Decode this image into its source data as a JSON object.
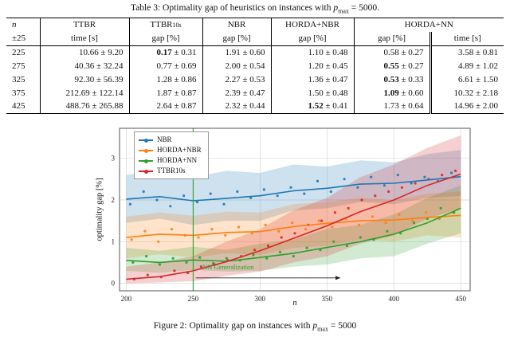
{
  "table": {
    "caption": {
      "prefix": "Table 3: Optimality gap of heuristics on instances with ",
      "var": "p",
      "sub": "max",
      "suffix": " = 5000."
    },
    "header": {
      "n_top": "n",
      "n_sub": "±25",
      "ttbr": "TTBR",
      "ttbr_sub": "time [s]",
      "ttbr10s_main": "TTBR",
      "ttbr10s_small": "10s",
      "ttbr10s_sub": "gap [%]",
      "nbr": "NBR",
      "nbr_sub": "gap [%]",
      "horda_nbr": "HORDA+NBR",
      "horda_nbr_sub": "gap [%]",
      "horda_nn": "HORDA+NN",
      "horda_nn_gap_sub": "gap [%]",
      "horda_nn_time_sub": "time [s]"
    },
    "rows": [
      {
        "n": "225",
        "cells": [
          {
            "v": "10.66",
            "e": "9.20",
            "b": false
          },
          {
            "v": "0.17",
            "e": "0.31",
            "b": true
          },
          {
            "v": "1.91",
            "e": "0.60",
            "b": false
          },
          {
            "v": "1.10",
            "e": "0.48",
            "b": false
          },
          {
            "v": "0.58",
            "e": "0.27",
            "b": false
          },
          {
            "v": "3.58",
            "e": "0.81",
            "b": false
          }
        ]
      },
      {
        "n": "275",
        "cells": [
          {
            "v": "40.36",
            "e": "32.24",
            "b": false
          },
          {
            "v": "0.77",
            "e": "0.69",
            "b": false
          },
          {
            "v": "2.00",
            "e": "0.54",
            "b": false
          },
          {
            "v": "1.20",
            "e": "0.45",
            "b": false
          },
          {
            "v": "0.55",
            "e": "0.27",
            "b": true
          },
          {
            "v": "4.89",
            "e": "1.02",
            "b": false
          }
        ]
      },
      {
        "n": "325",
        "cells": [
          {
            "v": "92.30",
            "e": "56.39",
            "b": false
          },
          {
            "v": "1.28",
            "e": "0.86",
            "b": false
          },
          {
            "v": "2.27",
            "e": "0.53",
            "b": false
          },
          {
            "v": "1.36",
            "e": "0.47",
            "b": false
          },
          {
            "v": "0.53",
            "e": "0.33",
            "b": true
          },
          {
            "v": "6.61",
            "e": "1.50",
            "b": false
          }
        ]
      },
      {
        "n": "375",
        "cells": [
          {
            "v": "212.69",
            "e": "122.14",
            "b": false
          },
          {
            "v": "1.87",
            "e": "0.87",
            "b": false
          },
          {
            "v": "2.39",
            "e": "0.47",
            "b": false
          },
          {
            "v": "1.50",
            "e": "0.48",
            "b": false
          },
          {
            "v": "1.09",
            "e": "0.60",
            "b": true
          },
          {
            "v": "10.32",
            "e": "2.18",
            "b": false
          }
        ]
      },
      {
        "n": "425",
        "cells": [
          {
            "v": "488.76",
            "e": "265.88",
            "b": false
          },
          {
            "v": "2.64",
            "e": "0.87",
            "b": false
          },
          {
            "v": "2.32",
            "e": "0.44",
            "b": false
          },
          {
            "v": "1.52",
            "e": "0.41",
            "b": true
          },
          {
            "v": "1.73",
            "e": "0.64",
            "b": false
          },
          {
            "v": "14.96",
            "e": "2.00",
            "b": false
          }
        ]
      }
    ]
  },
  "figure": {
    "caption": {
      "prefix": "Figure 2: Optimality gap on instances with ",
      "var": "p",
      "sub": "max",
      "suffix": " = 5000"
    }
  },
  "chart_data": {
    "type": "line",
    "title": "",
    "xlabel": "n",
    "ylabel": "optimality gap [%]",
    "xlim": [
      195,
      457
    ],
    "ylim": [
      -0.18,
      3.72
    ],
    "xticks": [
      200,
      250,
      300,
      350,
      400,
      450
    ],
    "yticks": [
      0,
      1,
      2,
      3
    ],
    "grid": true,
    "legend_position": "upper left",
    "x": [
      200,
      225,
      250,
      275,
      300,
      325,
      350,
      375,
      400,
      425,
      450
    ],
    "series": [
      {
        "name": "NBR",
        "color": "#1f77b4",
        "mean": [
          2.02,
          2.08,
          1.98,
          2.04,
          2.1,
          2.22,
          2.28,
          2.38,
          2.4,
          2.48,
          2.56
        ],
        "band_low": [
          1.45,
          1.55,
          1.4,
          1.5,
          1.5,
          1.75,
          1.8,
          1.95,
          1.9,
          2.05,
          2.1
        ],
        "band_high": [
          2.6,
          2.7,
          2.55,
          2.7,
          2.65,
          2.85,
          2.8,
          2.95,
          2.9,
          3.1,
          3.2
        ],
        "scatter": [
          [
            203,
            1.9
          ],
          [
            213,
            2.2
          ],
          [
            223,
            2.0
          ],
          [
            233,
            1.85
          ],
          [
            243,
            2.1
          ],
          [
            253,
            1.95
          ],
          [
            263,
            2.15
          ],
          [
            273,
            1.9
          ],
          [
            283,
            2.2
          ],
          [
            293,
            2.05
          ],
          [
            303,
            2.25
          ],
          [
            313,
            2.1
          ],
          [
            323,
            2.3
          ],
          [
            333,
            2.15
          ],
          [
            343,
            2.45
          ],
          [
            353,
            2.2
          ],
          [
            363,
            2.5
          ],
          [
            373,
            2.3
          ],
          [
            383,
            2.55
          ],
          [
            393,
            2.35
          ],
          [
            403,
            2.6
          ],
          [
            413,
            2.4
          ],
          [
            423,
            2.55
          ],
          [
            433,
            2.45
          ],
          [
            443,
            2.65
          ]
        ]
      },
      {
        "name": "HORDA+NBR",
        "color": "#ff7f0e",
        "mean": [
          1.1,
          1.18,
          1.15,
          1.22,
          1.24,
          1.36,
          1.44,
          1.5,
          1.52,
          1.58,
          1.63
        ],
        "band_low": [
          0.6,
          0.7,
          0.62,
          0.72,
          0.68,
          0.85,
          0.9,
          1.05,
          1.0,
          1.15,
          1.1
        ],
        "band_high": [
          1.6,
          1.7,
          1.62,
          1.72,
          1.7,
          1.9,
          1.95,
          2.05,
          2.0,
          2.15,
          2.2
        ],
        "scatter": [
          [
            204,
            1.05
          ],
          [
            214,
            1.25
          ],
          [
            224,
            1.0
          ],
          [
            234,
            1.3
          ],
          [
            244,
            1.15
          ],
          [
            254,
            1.1
          ],
          [
            264,
            1.3
          ],
          [
            274,
            1.15
          ],
          [
            284,
            1.35
          ],
          [
            294,
            1.2
          ],
          [
            304,
            1.4
          ],
          [
            314,
            1.25
          ],
          [
            324,
            1.45
          ],
          [
            334,
            1.3
          ],
          [
            344,
            1.5
          ],
          [
            354,
            1.35
          ],
          [
            364,
            1.55
          ],
          [
            374,
            1.4
          ],
          [
            384,
            1.6
          ],
          [
            394,
            1.45
          ],
          [
            404,
            1.65
          ],
          [
            414,
            1.5
          ],
          [
            424,
            1.7
          ],
          [
            434,
            1.55
          ],
          [
            444,
            1.7
          ]
        ]
      },
      {
        "name": "HORDA+NN",
        "color": "#2ca02c",
        "mean": [
          0.55,
          0.5,
          0.56,
          0.53,
          0.62,
          0.72,
          0.86,
          1.0,
          1.18,
          1.45,
          1.8
        ],
        "band_low": [
          0.3,
          0.25,
          0.32,
          0.28,
          0.3,
          0.4,
          0.45,
          0.6,
          0.65,
          0.95,
          1.2
        ],
        "band_high": [
          0.85,
          0.78,
          0.88,
          0.8,
          0.95,
          1.05,
          1.3,
          1.4,
          1.65,
          2.05,
          2.35
        ],
        "scatter": [
          [
            205,
            0.5
          ],
          [
            215,
            0.65
          ],
          [
            225,
            0.45
          ],
          [
            235,
            0.6
          ],
          [
            245,
            0.5
          ],
          [
            255,
            0.62
          ],
          [
            265,
            0.48
          ],
          [
            275,
            0.6
          ],
          [
            285,
            0.55
          ],
          [
            295,
            0.68
          ],
          [
            305,
            0.6
          ],
          [
            315,
            0.75
          ],
          [
            325,
            0.65
          ],
          [
            335,
            0.85
          ],
          [
            345,
            0.8
          ],
          [
            355,
            1.0
          ],
          [
            365,
            0.9
          ],
          [
            375,
            1.1
          ],
          [
            385,
            1.05
          ],
          [
            395,
            1.25
          ],
          [
            405,
            1.2
          ],
          [
            415,
            1.45
          ],
          [
            425,
            1.55
          ],
          [
            435,
            1.8
          ],
          [
            445,
            1.7
          ]
        ]
      },
      {
        "name": "TTBR10s",
        "color": "#d62728",
        "mean": [
          0.1,
          0.16,
          0.3,
          0.52,
          0.78,
          1.08,
          1.38,
          1.72,
          2.0,
          2.35,
          2.62
        ],
        "band_low": [
          0.0,
          0.02,
          0.05,
          0.18,
          0.28,
          0.5,
          0.65,
          0.95,
          1.15,
          1.55,
          1.8
        ],
        "band_high": [
          0.4,
          0.5,
          0.65,
          1.0,
          1.3,
          1.75,
          2.05,
          2.55,
          2.85,
          3.25,
          3.55
        ],
        "scatter": [
          [
            206,
            0.1
          ],
          [
            216,
            0.2
          ],
          [
            226,
            0.15
          ],
          [
            236,
            0.3
          ],
          [
            246,
            0.25
          ],
          [
            256,
            0.4
          ],
          [
            266,
            0.45
          ],
          [
            276,
            0.55
          ],
          [
            286,
            0.65
          ],
          [
            296,
            0.8
          ],
          [
            306,
            0.9
          ],
          [
            316,
            1.1
          ],
          [
            326,
            1.2
          ],
          [
            336,
            1.4
          ],
          [
            346,
            1.5
          ],
          [
            356,
            1.7
          ],
          [
            366,
            1.8
          ],
          [
            376,
            2.0
          ],
          [
            386,
            2.1
          ],
          [
            396,
            2.2
          ],
          [
            406,
            2.3
          ],
          [
            416,
            2.4
          ],
          [
            426,
            2.5
          ],
          [
            436,
            2.6
          ],
          [
            446,
            2.7
          ]
        ]
      }
    ],
    "annotations": {
      "vline": {
        "x": 250,
        "color": "#2ca02c"
      },
      "arrow": {
        "x_start": 252,
        "x_end": 360,
        "y": 0.13
      },
      "label": {
        "text": "NN Generalization",
        "x": 257,
        "y": 0.34,
        "color": "#2ca02c"
      }
    }
  }
}
